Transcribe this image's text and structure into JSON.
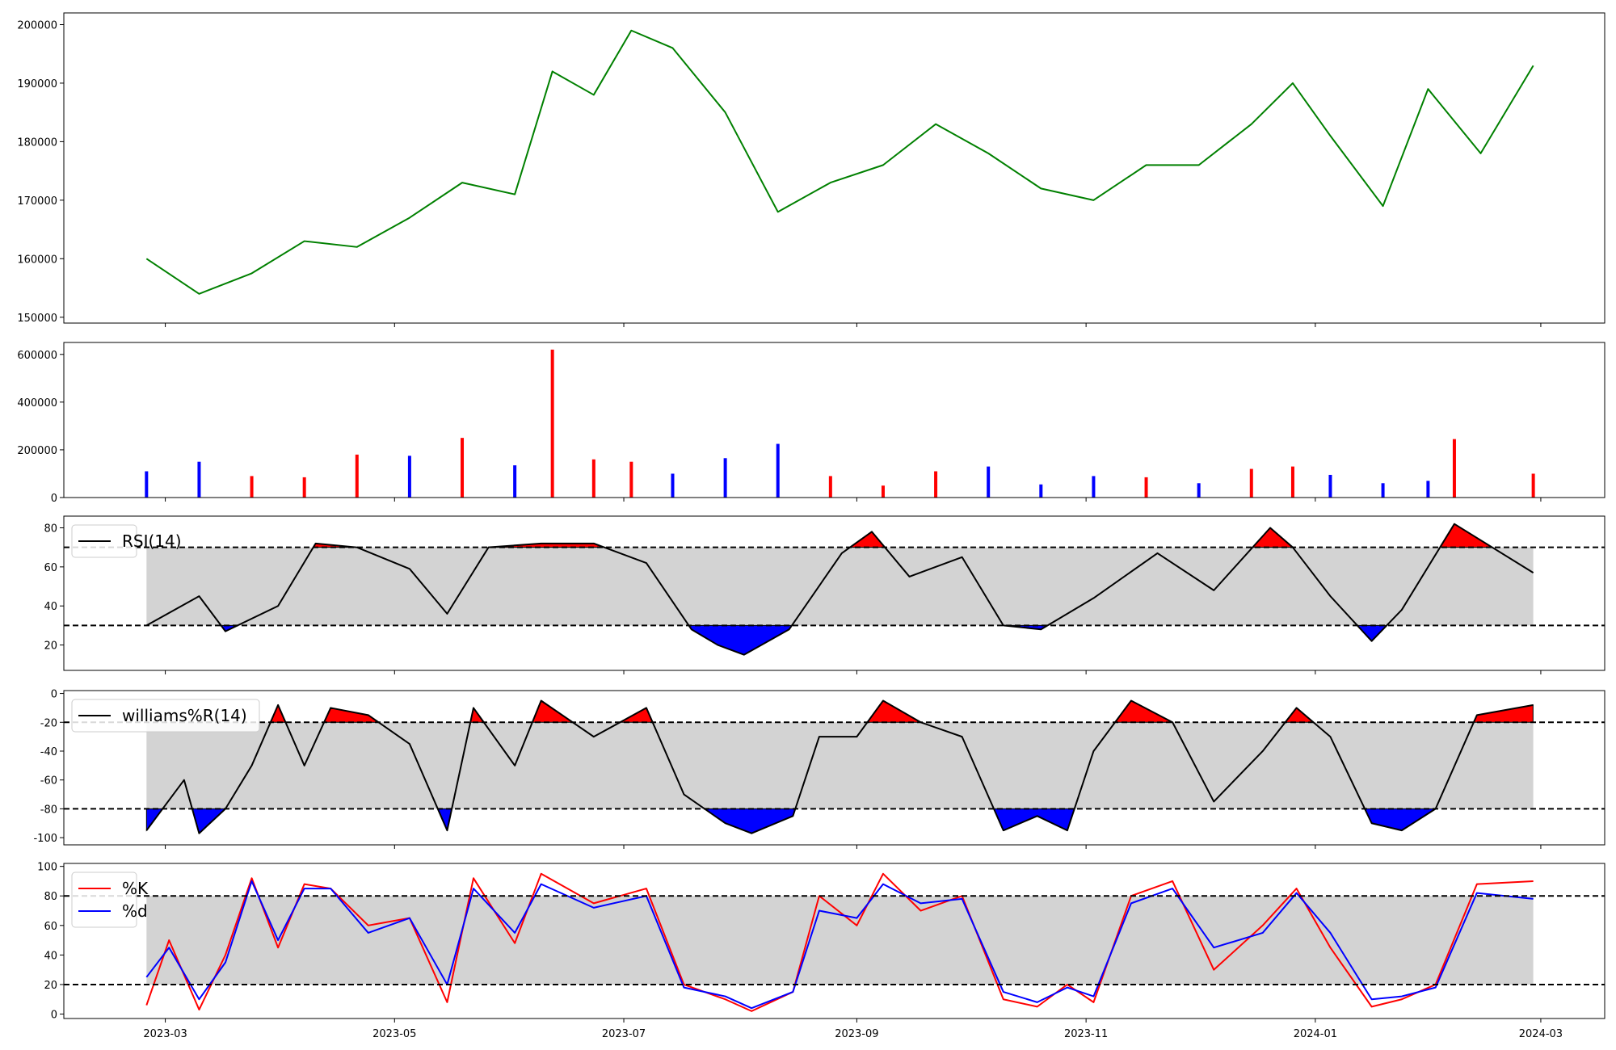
{
  "chart_data": [
    {
      "type": "line",
      "panel": "price",
      "title": "",
      "x": [
        "2023-02-24",
        "2023-03-10",
        "2023-03-24",
        "2023-04-07",
        "2023-04-21",
        "2023-05-05",
        "2023-05-19",
        "2023-06-02",
        "2023-06-12",
        "2023-06-23",
        "2023-07-03",
        "2023-07-14",
        "2023-07-28",
        "2023-08-11",
        "2023-08-25",
        "2023-09-08",
        "2023-09-22",
        "2023-10-06",
        "2023-10-20",
        "2023-11-03",
        "2023-11-17",
        "2023-12-01",
        "2023-12-15",
        "2023-12-26",
        "2024-01-05",
        "2024-01-19",
        "2024-01-31",
        "2024-02-14",
        "2024-02-28"
      ],
      "series": [
        {
          "color": "#008000",
          "values": [
            160000,
            154000,
            157500,
            163000,
            162000,
            167000,
            173000,
            171000,
            192000,
            188000,
            199000,
            196000,
            185000,
            168000,
            173000,
            176000,
            183000,
            178000,
            172000,
            170000,
            176000,
            176000,
            183000,
            190000,
            181000,
            169000,
            189000,
            178000,
            193000
          ]
        }
      ],
      "y_ticks": [
        "150000",
        "160000",
        "170000",
        "180000",
        "190000",
        "200000"
      ],
      "ylim": [
        149000,
        202000
      ],
      "grid": false
    },
    {
      "type": "bar",
      "panel": "volume",
      "title": "",
      "x": [
        "2023-02-24",
        "2023-03-10",
        "2023-03-24",
        "2023-04-07",
        "2023-04-21",
        "2023-05-05",
        "2023-05-19",
        "2023-06-02",
        "2023-06-12",
        "2023-06-23",
        "2023-07-03",
        "2023-07-14",
        "2023-07-28",
        "2023-08-11",
        "2023-08-25",
        "2023-09-08",
        "2023-09-22",
        "2023-10-06",
        "2023-10-20",
        "2023-11-03",
        "2023-11-17",
        "2023-12-01",
        "2023-12-15",
        "2023-12-26",
        "2024-01-05",
        "2024-01-19",
        "2024-01-31",
        "2024-02-07",
        "2024-02-28"
      ],
      "series": [
        {
          "values": [
            110000,
            150000,
            90000,
            85000,
            180000,
            175000,
            250000,
            135000,
            620000,
            160000,
            150000,
            100000,
            165000,
            225000,
            90000,
            50000,
            110000,
            130000,
            55000,
            90000,
            85000,
            60000,
            120000,
            130000,
            95000,
            60000,
            70000,
            245000,
            100000
          ],
          "colors": [
            "#0000ff",
            "#0000ff",
            "#ff0000",
            "#ff0000",
            "#ff0000",
            "#0000ff",
            "#ff0000",
            "#0000ff",
            "#ff0000",
            "#ff0000",
            "#ff0000",
            "#0000ff",
            "#0000ff",
            "#0000ff",
            "#ff0000",
            "#ff0000",
            "#ff0000",
            "#0000ff",
            "#0000ff",
            "#0000ff",
            "#ff0000",
            "#0000ff",
            "#ff0000",
            "#ff0000",
            "#0000ff",
            "#0000ff",
            "#0000ff",
            "#ff0000",
            "#ff0000"
          ]
        }
      ],
      "y_ticks": [
        "0",
        "200000",
        "400000",
        "600000"
      ],
      "ylim": [
        0,
        650000
      ],
      "grid": false
    },
    {
      "type": "line",
      "panel": "rsi",
      "title": "",
      "x": [
        "2023-02-24",
        "2023-03-10",
        "2023-03-17",
        "2023-03-31",
        "2023-04-10",
        "2023-04-21",
        "2023-05-05",
        "2023-05-15",
        "2023-05-26",
        "2023-06-09",
        "2023-06-23",
        "2023-07-07",
        "2023-07-19",
        "2023-07-26",
        "2023-08-02",
        "2023-08-14",
        "2023-08-28",
        "2023-09-05",
        "2023-09-15",
        "2023-09-29",
        "2023-10-10",
        "2023-10-20",
        "2023-11-03",
        "2023-11-20",
        "2023-12-05",
        "2023-12-20",
        "2023-12-26",
        "2024-01-05",
        "2024-01-16",
        "2024-01-24",
        "2024-02-07",
        "2024-02-28"
      ],
      "series": [
        {
          "name": "RSI(14)",
          "color": "#000000",
          "values": [
            30,
            45,
            27,
            40,
            72,
            70,
            59,
            36,
            70,
            72,
            72,
            62,
            28,
            20,
            15,
            28,
            67,
            78,
            55,
            65,
            30,
            28,
            44,
            67,
            48,
            80,
            70,
            45,
            22,
            38,
            82,
            57
          ]
        }
      ],
      "y_ticks": [
        "20",
        "40",
        "60",
        "80"
      ],
      "ylim": [
        7,
        86
      ],
      "bands": [
        30,
        70
      ],
      "legend": "upper left",
      "grid": false
    },
    {
      "type": "line",
      "panel": "williams",
      "title": "",
      "x": [
        "2023-02-24",
        "2023-03-06",
        "2023-03-10",
        "2023-03-17",
        "2023-03-24",
        "2023-03-31",
        "2023-04-07",
        "2023-04-14",
        "2023-04-24",
        "2023-05-05",
        "2023-05-15",
        "2023-05-22",
        "2023-06-02",
        "2023-06-09",
        "2023-06-23",
        "2023-07-07",
        "2023-07-17",
        "2023-07-28",
        "2023-08-04",
        "2023-08-15",
        "2023-08-22",
        "2023-09-01",
        "2023-09-08",
        "2023-09-18",
        "2023-09-29",
        "2023-10-10",
        "2023-10-19",
        "2023-10-27",
        "2023-11-03",
        "2023-11-13",
        "2023-11-24",
        "2023-12-05",
        "2023-12-18",
        "2023-12-27",
        "2024-01-05",
        "2024-01-16",
        "2024-01-24",
        "2024-02-02",
        "2024-02-13",
        "2024-02-28"
      ],
      "series": [
        {
          "name": "williams%R(14)",
          "color": "#000000",
          "values": [
            -95,
            -60,
            -97,
            -80,
            -50,
            -8,
            -50,
            -10,
            -15,
            -35,
            -95,
            -10,
            -50,
            -5,
            -30,
            -10,
            -70,
            -90,
            -97,
            -85,
            -30,
            -30,
            -5,
            -20,
            -30,
            -95,
            -85,
            -95,
            -40,
            -5,
            -20,
            -75,
            -40,
            -10,
            -30,
            -90,
            -95,
            -80,
            -15,
            -8
          ]
        }
      ],
      "y_ticks": [
        "-100",
        "-80",
        "-60",
        "-40",
        "-20",
        "0"
      ],
      "ylim": [
        -105,
        2
      ],
      "bands": [
        -80,
        -20
      ],
      "legend": "upper left",
      "grid": false
    },
    {
      "type": "line",
      "panel": "stochastic",
      "title": "",
      "x": [
        "2023-02-24",
        "2023-03-02",
        "2023-03-10",
        "2023-03-17",
        "2023-03-24",
        "2023-03-31",
        "2023-04-07",
        "2023-04-14",
        "2023-04-24",
        "2023-05-05",
        "2023-05-15",
        "2023-05-22",
        "2023-06-02",
        "2023-06-09",
        "2023-06-23",
        "2023-07-07",
        "2023-07-17",
        "2023-07-28",
        "2023-08-04",
        "2023-08-15",
        "2023-08-22",
        "2023-09-01",
        "2023-09-08",
        "2023-09-18",
        "2023-09-29",
        "2023-10-10",
        "2023-10-19",
        "2023-10-27",
        "2023-11-03",
        "2023-11-13",
        "2023-11-24",
        "2023-12-05",
        "2023-12-18",
        "2023-12-27",
        "2024-01-05",
        "2024-01-16",
        "2024-01-24",
        "2024-02-02",
        "2024-02-13",
        "2024-02-28"
      ],
      "series": [
        {
          "name": "%K",
          "color": "#ff0000",
          "values": [
            6,
            50,
            3,
            40,
            92,
            45,
            88,
            85,
            60,
            65,
            8,
            92,
            48,
            95,
            75,
            85,
            20,
            10,
            2,
            15,
            80,
            60,
            95,
            70,
            80,
            10,
            5,
            20,
            8,
            80,
            90,
            30,
            60,
            85,
            45,
            5,
            10,
            20,
            88,
            90
          ]
        },
        {
          "name": "%d",
          "color": "#0000ff",
          "values": [
            25,
            45,
            10,
            35,
            90,
            50,
            85,
            85,
            55,
            65,
            20,
            85,
            55,
            88,
            72,
            80,
            18,
            12,
            4,
            15,
            70,
            65,
            88,
            75,
            78,
            15,
            8,
            18,
            12,
            75,
            85,
            45,
            55,
            82,
            55,
            10,
            12,
            18,
            82,
            78
          ]
        }
      ],
      "y_ticks": [
        "0",
        "20",
        "40",
        "60",
        "80",
        "100"
      ],
      "ylim": [
        -3,
        102
      ],
      "bands": [
        20,
        80
      ],
      "legend": "upper left",
      "grid": false
    }
  ],
  "x_axis": {
    "domain": [
      "2023-02-02",
      "2024-03-18"
    ],
    "ticks": [
      "2023-03",
      "2023-05",
      "2023-07",
      "2023-09",
      "2023-11",
      "2024-01",
      "2024-03"
    ],
    "tick_dates": [
      "2023-03-01",
      "2023-05-01",
      "2023-07-01",
      "2023-09-01",
      "2023-11-01",
      "2024-01-01",
      "2024-03-01"
    ]
  },
  "style": {
    "overbought_color": "#ff0000",
    "oversold_color": "#0000ff",
    "band_fill_color": "#d3d3d3"
  }
}
